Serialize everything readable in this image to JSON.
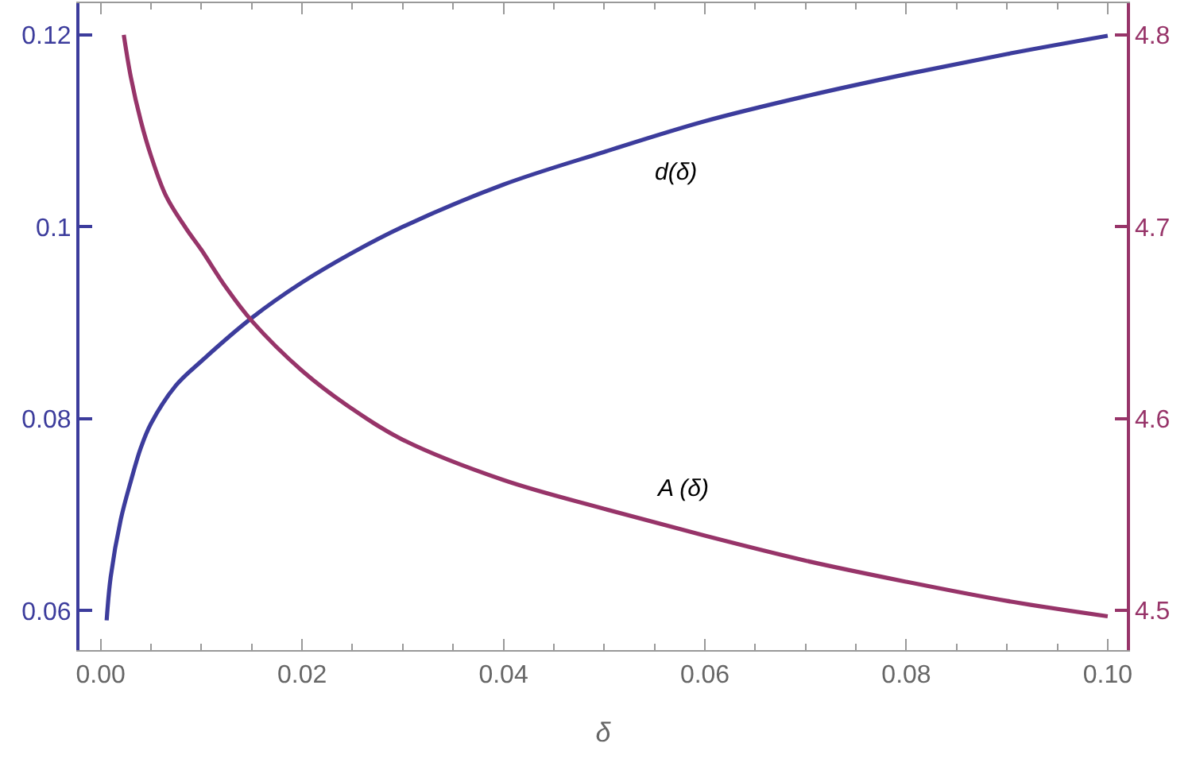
{
  "chart_data": {
    "type": "line",
    "xlabel": "δ",
    "xlim": [
      -0.0021,
      0.1019
    ],
    "xticks": [
      {
        "value": 0,
        "label": "0.00"
      },
      0.02,
      0.04,
      0.06,
      0.08,
      {
        "value": 0.1,
        "label": "0.10"
      }
    ],
    "ylim": [
      0.0559,
      0.1233
    ],
    "yticks": [
      0.06,
      0.08,
      {
        "value": 0.1,
        "label": "0.1"
      },
      0.12
    ],
    "y2lim": [
      4.4794,
      4.8165
    ],
    "y2ticks": [
      4.5,
      4.6,
      4.7,
      4.8
    ],
    "legend": false,
    "marker": "none",
    "line_style": "solid",
    "series": [
      {
        "name": "d(δ)",
        "color": "#3c3c9c",
        "x": [
          0.0006,
          0.001,
          0.002,
          0.003,
          0.004,
          0.005,
          0.0075,
          0.01,
          0.015,
          0.02,
          0.025,
          0.03,
          0.04,
          0.05,
          0.06,
          0.07,
          0.08,
          0.09,
          0.1
        ],
        "values": [
          0.059,
          0.0635,
          0.0695,
          0.0735,
          0.077,
          0.0795,
          0.0835,
          0.086,
          0.0905,
          0.0942,
          0.0973,
          0.1,
          0.1044,
          0.1078,
          0.111,
          0.1136,
          0.1159,
          0.118,
          0.1199
        ]
      },
      {
        "name": "A (δ)",
        "color": "#973469",
        "axis": "y2",
        "x": [
          0.0023,
          0.003,
          0.004,
          0.005,
          0.0065,
          0.0085,
          0.01,
          0.0125,
          0.015,
          0.02,
          0.025,
          0.03,
          0.04,
          0.05,
          0.06,
          0.07,
          0.08,
          0.09,
          0.1
        ],
        "values": [
          4.8,
          4.778,
          4.755,
          4.737,
          4.716,
          4.699,
          4.688,
          4.668,
          4.651,
          4.625,
          4.605,
          4.589,
          4.568,
          4.553,
          4.539,
          4.526,
          4.515,
          4.505,
          4.497
        ]
      }
    ]
  }
}
